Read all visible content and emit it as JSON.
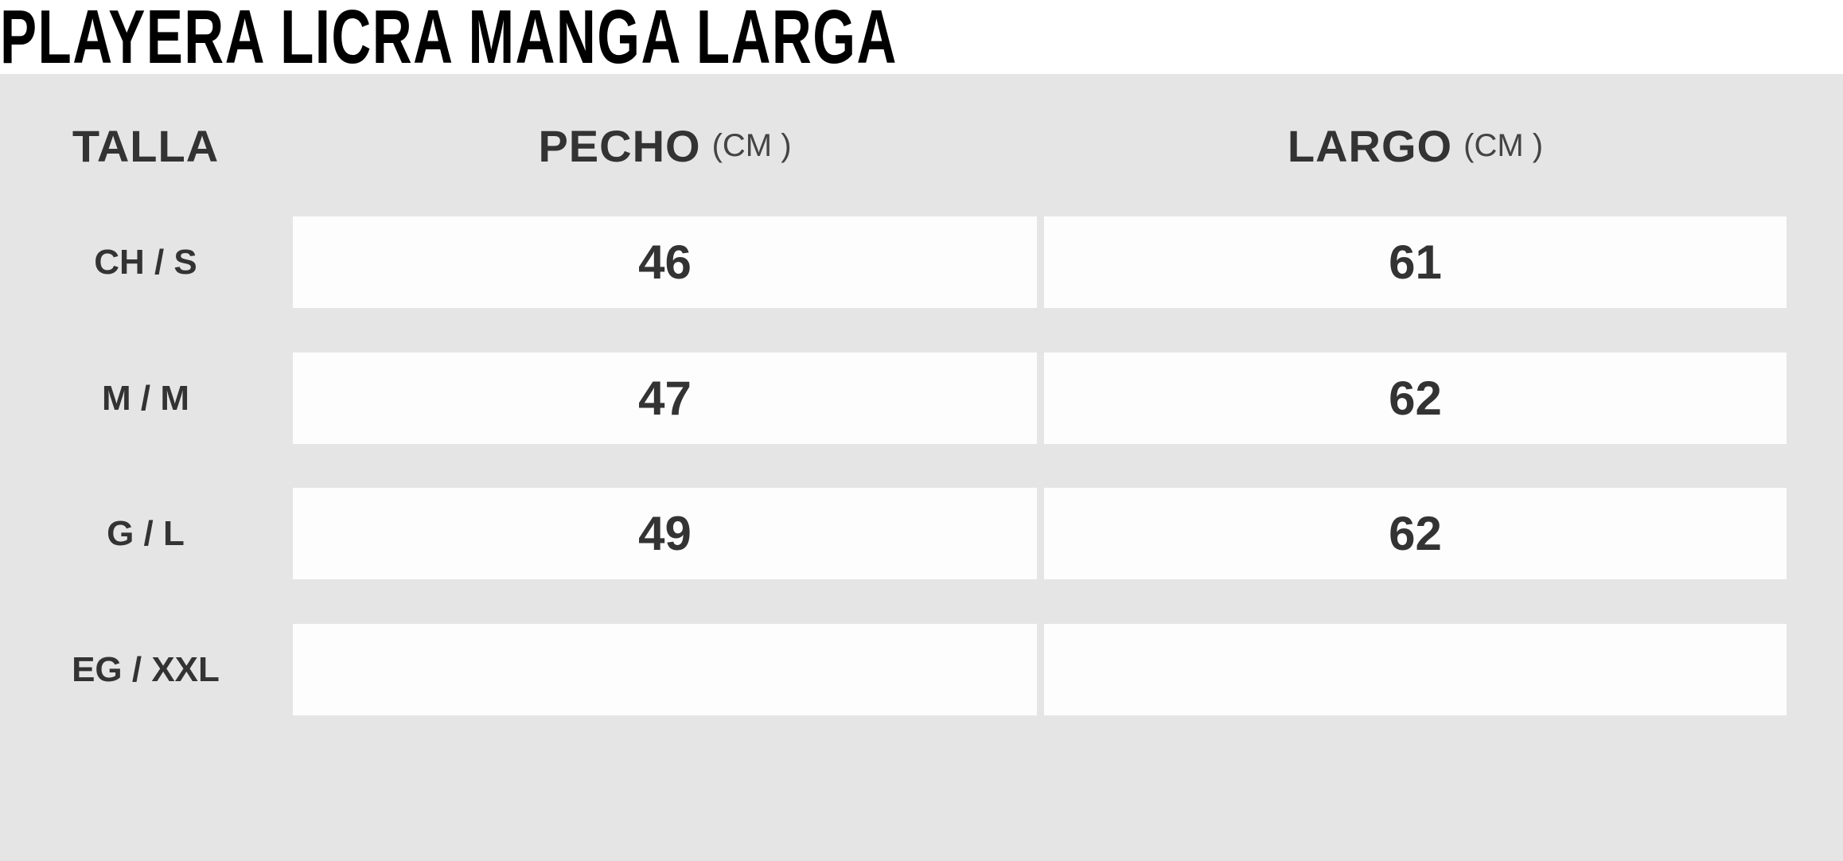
{
  "title": "PLAYERA LICRA MANGA LARGA",
  "headers": {
    "size": "TALLA",
    "chest": "PECHO",
    "chest_unit": "(CM )",
    "length": "LARGO",
    "length_unit": "(CM )"
  },
  "rows": [
    {
      "size": "CH / S",
      "chest": "46",
      "length": "61"
    },
    {
      "size": "M / M",
      "chest": "47",
      "length": "62"
    },
    {
      "size": "G / L",
      "chest": "49",
      "length": "62"
    },
    {
      "size": "EG / XXL",
      "chest": "",
      "length": ""
    }
  ]
}
